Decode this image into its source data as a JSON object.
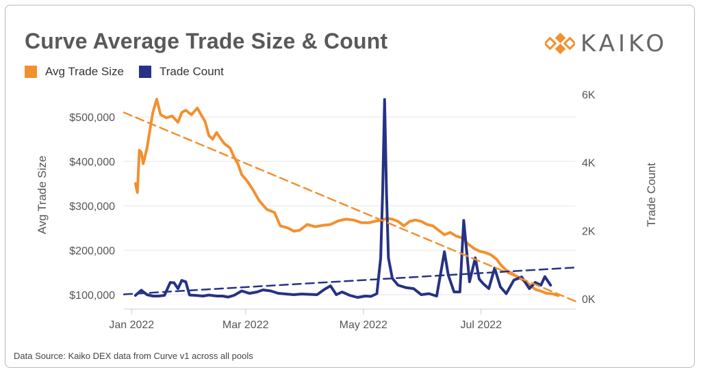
{
  "title": "Curve Average Trade Size & Count",
  "logo": {
    "text": "KAIKO",
    "icon": "kaiko-logo-icon"
  },
  "footer": "Data Source: Kaiko DEX data from Curve v1 across all pools",
  "colors": {
    "avg": "#f2902e",
    "count": "#263285",
    "grid": "#e6e6e6",
    "axis": "#cccccc"
  },
  "chart_data": {
    "type": "line",
    "title": "Curve Average Trade Size & Count",
    "legend": {
      "position": "top-left",
      "entries": [
        "Avg Trade Size",
        "Trade Count"
      ]
    },
    "x_axis": {
      "ticks": [
        "Jan 2022",
        "Mar 2022",
        "May 2022",
        "Jul 2022"
      ],
      "range": [
        "2021-12-28",
        "2022-08-19"
      ]
    },
    "y_left": {
      "label": "Avg Trade Size",
      "ticks": [
        "$100,000",
        "$200,000",
        "$300,000",
        "$400,000",
        "$500,000"
      ],
      "range": [
        100000,
        550000
      ]
    },
    "y_right": {
      "label": "Trade Count",
      "ticks": [
        "0K",
        "2K",
        "4K",
        "6K"
      ],
      "range": [
        0,
        6000
      ]
    },
    "grid": true,
    "series": [
      {
        "name": "Avg Trade Size",
        "axis": "left",
        "style": "solid",
        "points": [
          [
            "2022-01-03",
            350000
          ],
          [
            "2022-01-04",
            330000
          ],
          [
            "2022-01-05",
            425000
          ],
          [
            "2022-01-06",
            420000
          ],
          [
            "2022-01-07",
            395000
          ],
          [
            "2022-01-09",
            430000
          ],
          [
            "2022-01-11",
            485000
          ],
          [
            "2022-01-12",
            510000
          ],
          [
            "2022-01-14",
            540000
          ],
          [
            "2022-01-16",
            505000
          ],
          [
            "2022-01-19",
            498000
          ],
          [
            "2022-01-22",
            502000
          ],
          [
            "2022-01-25",
            488000
          ],
          [
            "2022-01-27",
            510000
          ],
          [
            "2022-01-29",
            515000
          ],
          [
            "2022-02-01",
            505000
          ],
          [
            "2022-02-04",
            520000
          ],
          [
            "2022-02-06",
            505000
          ],
          [
            "2022-02-08",
            490000
          ],
          [
            "2022-02-10",
            458000
          ],
          [
            "2022-02-12",
            450000
          ],
          [
            "2022-02-14",
            465000
          ],
          [
            "2022-02-16",
            452000
          ],
          [
            "2022-02-18",
            440000
          ],
          [
            "2022-02-21",
            430000
          ],
          [
            "2022-02-23",
            410000
          ],
          [
            "2022-02-25",
            395000
          ],
          [
            "2022-02-27",
            370000
          ],
          [
            "2022-03-02",
            355000
          ],
          [
            "2022-03-05",
            335000
          ],
          [
            "2022-03-08",
            312000
          ],
          [
            "2022-03-12",
            292000
          ],
          [
            "2022-03-16",
            285000
          ],
          [
            "2022-03-19",
            255000
          ],
          [
            "2022-03-23",
            250000
          ],
          [
            "2022-03-26",
            243000
          ],
          [
            "2022-03-29",
            245000
          ],
          [
            "2022-04-02",
            258000
          ],
          [
            "2022-04-06",
            253000
          ],
          [
            "2022-04-10",
            256000
          ],
          [
            "2022-04-14",
            258000
          ],
          [
            "2022-04-18",
            266000
          ],
          [
            "2022-04-22",
            270000
          ],
          [
            "2022-04-26",
            268000
          ],
          [
            "2022-04-30",
            262000
          ],
          [
            "2022-05-04",
            262000
          ],
          [
            "2022-05-08",
            266000
          ],
          [
            "2022-05-11",
            268000
          ],
          [
            "2022-05-13",
            272000
          ],
          [
            "2022-05-16",
            270000
          ],
          [
            "2022-05-19",
            265000
          ],
          [
            "2022-05-22",
            255000
          ],
          [
            "2022-05-25",
            265000
          ],
          [
            "2022-05-28",
            268000
          ],
          [
            "2022-05-31",
            265000
          ],
          [
            "2022-06-03",
            258000
          ],
          [
            "2022-06-06",
            255000
          ],
          [
            "2022-06-09",
            245000
          ],
          [
            "2022-06-12",
            235000
          ],
          [
            "2022-06-15",
            240000
          ],
          [
            "2022-06-18",
            232000
          ],
          [
            "2022-06-21",
            228000
          ],
          [
            "2022-06-24",
            215000
          ],
          [
            "2022-06-27",
            205000
          ],
          [
            "2022-06-30",
            198000
          ],
          [
            "2022-07-03",
            195000
          ],
          [
            "2022-07-06",
            190000
          ],
          [
            "2022-07-09",
            180000
          ],
          [
            "2022-07-11",
            168000
          ],
          [
            "2022-07-14",
            155000
          ],
          [
            "2022-07-17",
            148000
          ],
          [
            "2022-07-20",
            140000
          ],
          [
            "2022-07-23",
            132000
          ],
          [
            "2022-07-26",
            123000
          ],
          [
            "2022-07-29",
            112000
          ],
          [
            "2022-08-01",
            108000
          ],
          [
            "2022-08-04",
            103000
          ],
          [
            "2022-08-07",
            102000
          ],
          [
            "2022-08-10",
            98000
          ]
        ]
      },
      {
        "name": "Trade Count",
        "axis": "right",
        "style": "solid",
        "points": [
          [
            "2022-01-03",
            100
          ],
          [
            "2022-01-06",
            250
          ],
          [
            "2022-01-09",
            120
          ],
          [
            "2022-01-12",
            80
          ],
          [
            "2022-01-15",
            80
          ],
          [
            "2022-01-18",
            100
          ],
          [
            "2022-01-21",
            480
          ],
          [
            "2022-01-23",
            470
          ],
          [
            "2022-01-25",
            300
          ],
          [
            "2022-01-27",
            540
          ],
          [
            "2022-01-29",
            500
          ],
          [
            "2022-01-31",
            110
          ],
          [
            "2022-02-03",
            100
          ],
          [
            "2022-02-07",
            80
          ],
          [
            "2022-02-10",
            110
          ],
          [
            "2022-02-14",
            80
          ],
          [
            "2022-02-17",
            80
          ],
          [
            "2022-02-20",
            50
          ],
          [
            "2022-02-23",
            100
          ],
          [
            "2022-02-27",
            230
          ],
          [
            "2022-03-03",
            160
          ],
          [
            "2022-03-07",
            200
          ],
          [
            "2022-03-10",
            260
          ],
          [
            "2022-03-14",
            230
          ],
          [
            "2022-03-18",
            160
          ],
          [
            "2022-03-22",
            140
          ],
          [
            "2022-03-26",
            120
          ],
          [
            "2022-03-30",
            140
          ],
          [
            "2022-04-03",
            130
          ],
          [
            "2022-04-07",
            120
          ],
          [
            "2022-04-11",
            280
          ],
          [
            "2022-04-14",
            380
          ],
          [
            "2022-04-17",
            120
          ],
          [
            "2022-04-20",
            200
          ],
          [
            "2022-04-24",
            100
          ],
          [
            "2022-04-28",
            40
          ],
          [
            "2022-05-02",
            80
          ],
          [
            "2022-05-05",
            70
          ],
          [
            "2022-05-08",
            150
          ],
          [
            "2022-05-10",
            1200
          ],
          [
            "2022-05-11",
            3100
          ],
          [
            "2022-05-12",
            5850
          ],
          [
            "2022-05-13",
            3100
          ],
          [
            "2022-05-14",
            1200
          ],
          [
            "2022-05-16",
            600
          ],
          [
            "2022-05-19",
            400
          ],
          [
            "2022-05-23",
            330
          ],
          [
            "2022-05-27",
            300
          ],
          [
            "2022-05-31",
            120
          ],
          [
            "2022-06-04",
            150
          ],
          [
            "2022-06-08",
            80
          ],
          [
            "2022-06-12",
            1380
          ],
          [
            "2022-06-14",
            700
          ],
          [
            "2022-06-17",
            200
          ],
          [
            "2022-06-20",
            200
          ],
          [
            "2022-06-22",
            2300
          ],
          [
            "2022-06-25",
            500
          ],
          [
            "2022-06-28",
            1200
          ],
          [
            "2022-06-30",
            580
          ],
          [
            "2022-07-02",
            450
          ],
          [
            "2022-07-05",
            300
          ],
          [
            "2022-07-08",
            900
          ],
          [
            "2022-07-11",
            350
          ],
          [
            "2022-07-14",
            150
          ],
          [
            "2022-07-18",
            550
          ],
          [
            "2022-07-22",
            640
          ],
          [
            "2022-07-26",
            300
          ],
          [
            "2022-07-29",
            480
          ],
          [
            "2022-08-01",
            400
          ],
          [
            "2022-08-03",
            650
          ],
          [
            "2022-08-06",
            400
          ]
        ]
      },
      {
        "name": "Avg Trade Size trend",
        "axis": "left",
        "style": "dashed",
        "points": [
          [
            "2021-12-28",
            510000
          ],
          [
            "2022-08-19",
            85000
          ]
        ]
      },
      {
        "name": "Trade Count trend",
        "axis": "right",
        "style": "dashed",
        "points": [
          [
            "2021-12-28",
            130
          ],
          [
            "2022-08-19",
            920
          ]
        ]
      }
    ]
  }
}
